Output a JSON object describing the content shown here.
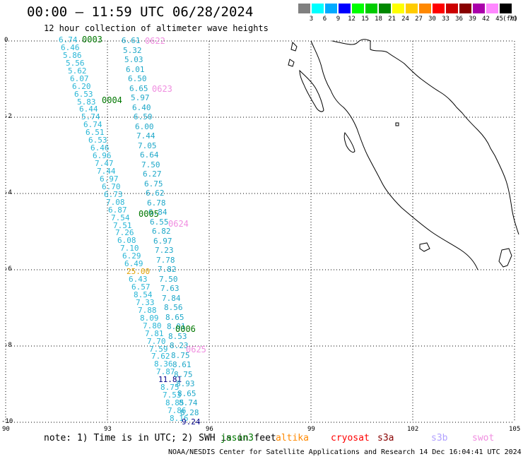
{
  "title": "00:00 — 11:59 UTC 06/28/2024",
  "subtitle": "12 hour collection of altimeter wave heights",
  "color_scale": {
    "unit_label": "(ft)",
    "bins": [
      {
        "label": "3",
        "color": "#808080"
      },
      {
        "label": "6",
        "color": "#00ffff"
      },
      {
        "label": "9",
        "color": "#00aaff"
      },
      {
        "label": "12",
        "color": "#0000ff"
      },
      {
        "label": "15",
        "color": "#00ff00"
      },
      {
        "label": "18",
        "color": "#00cc00"
      },
      {
        "label": "21",
        "color": "#008800"
      },
      {
        "label": "24",
        "color": "#ffff00"
      },
      {
        "label": "27",
        "color": "#ffcc00"
      },
      {
        "label": "30",
        "color": "#ff8800"
      },
      {
        "label": "33",
        "color": "#ff0000"
      },
      {
        "label": "36",
        "color": "#cc0000"
      },
      {
        "label": "39",
        "color": "#880000"
      },
      {
        "label": "42",
        "color": "#aa00aa"
      },
      {
        "label": "45",
        "color": "#ff88ff"
      },
      {
        "label": "70",
        "color": "#000000"
      }
    ]
  },
  "axes": {
    "lat_labels": [
      "0",
      "-2",
      "-4",
      "-6",
      "-8",
      "-10"
    ],
    "lon_labels": [
      "90",
      "93",
      "96",
      "99",
      "102",
      "105"
    ]
  },
  "colors": {
    "track_a": "#29b6d6",
    "track_b": "#1fa8c9",
    "jason": "#007700",
    "swot": "#f08ee0",
    "outlier_high": "#e0a000",
    "outlier_dark": "#000088"
  },
  "track_a": [
    "6.74",
    "6.46",
    "5.86",
    "5.56",
    "5.62",
    "6.07",
    "6.20",
    "6.53",
    "5.83",
    "6.44",
    "5.74",
    "6.74",
    "6.51",
    "6.53",
    "6.46",
    "6.96",
    "7.47",
    "7.44",
    "6.97",
    "6.70",
    "6.73",
    "7.08",
    "6.87",
    "7.54",
    "7.51",
    "7.26",
    "6.08",
    "7.10",
    "6.29",
    "6.49",
    "25.00",
    "6.43",
    "6.57",
    "8.54",
    "7.33",
    "7.88",
    "8.09",
    "7.80",
    "7.81",
    "7.70",
    "7.59",
    "7.62",
    "8.36",
    "7.87",
    "11.81",
    "8.75",
    "7.53",
    "8.85",
    "7.86",
    "8.16"
  ],
  "track_b": [
    "6.61",
    "5.32",
    "5.03",
    "6.01",
    "6.50",
    "6.65",
    "5.97",
    "6.40",
    "6.50",
    "6.00",
    "7.44",
    "7.05",
    "6.64",
    "7.50",
    "6.27",
    "6.75",
    "6.62",
    "6.78",
    "6.84",
    "6.55",
    "6.82",
    "6.97",
    "7.23",
    "7.78",
    "7.82",
    "7.50",
    "7.63",
    "7.84",
    "8.56",
    "8.65",
    "8.01",
    "8.53",
    "8.23",
    "8.75",
    "8.61",
    "8.75",
    "8.93",
    "8.65",
    "8.74",
    "8.28",
    "9.24"
  ],
  "pass_labels": {
    "jason": [
      "0003",
      "0004",
      "0005",
      "0006"
    ],
    "swot": [
      "0622",
      "0623",
      "0624",
      "0625"
    ]
  },
  "note": "note: 1) Time is in UTC; 2) SWH is in feet",
  "legend": [
    {
      "label": "jason3",
      "color": "#007700"
    },
    {
      "label": "altika",
      "color": "#ff8800"
    },
    {
      "label": "cryosat",
      "color": "#ff0000"
    },
    {
      "label": "s3a",
      "color": "#880000"
    },
    {
      "label": "s3b",
      "color": "#b0a0ff"
    },
    {
      "label": "swot",
      "color": "#f08ee0"
    }
  ],
  "footer": "NOAA/NESDIS Center for Satellite Applications and Research    14 Dec 16:04:41 UTC 2024"
}
